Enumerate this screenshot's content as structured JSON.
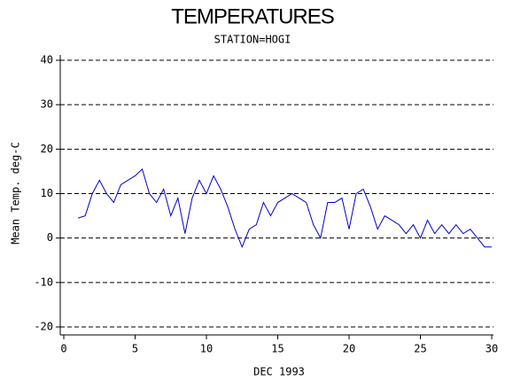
{
  "chart_data": {
    "type": "line",
    "title": "TEMPERATURES",
    "subtitle": "STATION=HOGI",
    "x_label": "DEC 1993",
    "y_label": "Mean Temp. deg-C",
    "x": [
      1,
      1.5,
      2,
      2.5,
      3,
      3.5,
      4,
      4.5,
      5,
      5.5,
      6,
      6.5,
      7,
      7.5,
      8,
      8.5,
      9,
      9.5,
      10,
      10.5,
      11,
      11.5,
      12,
      12.5,
      13,
      13.5,
      14,
      14.5,
      15,
      15.5,
      16,
      16.5,
      17,
      17.5,
      18,
      18.5,
      19,
      19.5,
      20,
      20.5,
      21,
      21.5,
      22,
      22.5,
      23,
      23.5,
      24,
      24.5,
      25,
      25.5,
      26,
      26.5,
      27,
      27.5,
      28,
      28.5,
      29,
      29.5,
      30
    ],
    "series": [
      {
        "name": "Mean Temp",
        "color": "#0000cc",
        "values": [
          4.5,
          5,
          10,
          13,
          10,
          8,
          12,
          13,
          14,
          15.5,
          10,
          8,
          11,
          5,
          9,
          1,
          9,
          13,
          10,
          14,
          11,
          7,
          2,
          -2,
          2,
          3,
          8,
          5,
          8,
          9,
          10,
          9,
          8,
          3,
          0,
          8,
          8,
          9,
          2,
          10,
          11,
          7,
          2,
          5,
          4,
          3,
          1,
          3,
          0,
          4,
          1,
          3,
          1,
          3,
          1,
          2,
          0,
          -2,
          -2
        ]
      }
    ],
    "xlim": [
      0,
      30
    ],
    "xticks": [
      0,
      5,
      10,
      15,
      20,
      25,
      30
    ],
    "ylim": [
      -20,
      40
    ],
    "yticks": [
      -20,
      -10,
      0,
      10,
      20,
      30,
      40
    ],
    "grid": true
  }
}
